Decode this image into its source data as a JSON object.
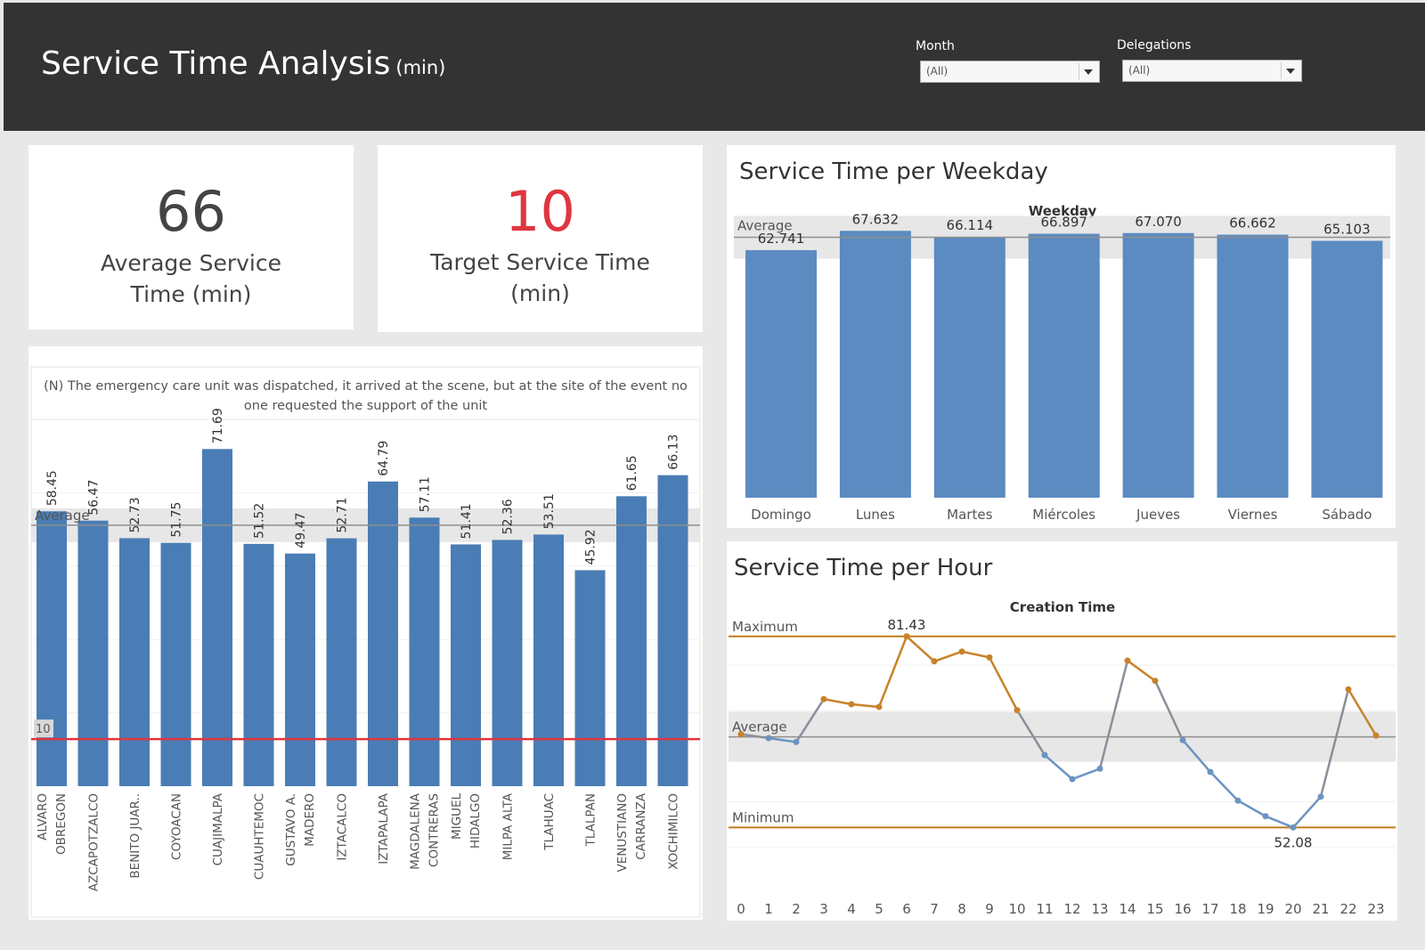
{
  "header": {
    "title": "Service Time Analysis",
    "title_unit": "(min)",
    "filters": [
      {
        "label": "Month",
        "value": "(All)"
      },
      {
        "label": "Delegations",
        "value": "(All)"
      }
    ]
  },
  "kpis": [
    {
      "value": "66",
      "label_line1": "Average Service",
      "label_line2": "Time (min)",
      "color": "#444444"
    },
    {
      "value": "10",
      "label_line1": "Target Service Time",
      "label_line2": "(min)",
      "color": "#e0353f"
    }
  ],
  "colors": {
    "bar": "#4a7db5",
    "bar_weekday": "#5b8bc0",
    "target_line": "#e0353f",
    "hour_line_high": "#c8822a",
    "hour_line_low": "#6a94c2",
    "ref_line": "#c07c1c"
  },
  "chart_data": [
    {
      "type": "bar",
      "note_line1": "(N) The emergency care unit was dispatched, it arrived at the scene, but at the site of the event no",
      "note_line2": "one requested the support of the unit",
      "categories": [
        "ALVARO|OBREGON",
        "AZCAPOTZALCO",
        "BENITO JUAR..",
        "COYOACAN",
        "CUAJIMALPA",
        "CUAUHTEMOC",
        "GUSTAVO A.|MADERO",
        "IZTACALCO",
        "IZTAPALAPA",
        "MAGDALENA|CONTRERAS",
        "MIGUEL|HIDALGO",
        "MILPA ALTA",
        "TLAHUAC",
        "TLALPAN",
        "VENUSTIANO|CARRANZA",
        "XOCHIMILCO"
      ],
      "values": [
        58.45,
        56.47,
        52.73,
        51.75,
        71.69,
        51.52,
        49.47,
        52.71,
        64.79,
        57.11,
        51.41,
        52.36,
        53.51,
        45.92,
        61.65,
        66.13
      ],
      "value_labels": [
        "58.45",
        "56.47",
        "52.73",
        "51.75",
        "71.69",
        "51.52",
        "49.47",
        "52.71",
        "64.79",
        "57.11",
        "51.41",
        "52.36",
        "53.51",
        "45.92",
        "61.65",
        "66.13"
      ],
      "ylim": [
        0,
        78
      ],
      "reference_lines": [
        {
          "label": "Average",
          "value": 55.5
        },
        {
          "label": "10",
          "value": 10
        }
      ]
    },
    {
      "type": "bar",
      "title": "Service Time per Weekday",
      "xlabel": "Weekday",
      "categories": [
        "Domingo",
        "Lunes",
        "Martes",
        "Miércoles",
        "Jueves",
        "Viernes",
        "Sábado"
      ],
      "values": [
        62.741,
        67.632,
        66.114,
        66.897,
        67.07,
        66.662,
        65.103
      ],
      "value_labels": [
        "62.741",
        "67.632",
        "66.114",
        "66.897",
        "67.070",
        "66.662",
        "65.103"
      ],
      "ylim": [
        0,
        69.5
      ],
      "reference_lines": [
        {
          "label": "Average",
          "value": 66.0
        }
      ]
    },
    {
      "type": "line",
      "title": "Service Time per Hour",
      "xlabel": "Creation Time",
      "x": [
        0,
        1,
        2,
        3,
        4,
        5,
        6,
        7,
        8,
        9,
        10,
        11,
        12,
        13,
        14,
        15,
        16,
        17,
        18,
        19,
        20,
        21,
        22,
        23
      ],
      "x_labels": [
        "0",
        "1",
        "2",
        "3",
        "4",
        "5",
        "6",
        "7",
        "8",
        "9",
        "10",
        "11",
        "12",
        "13",
        "14",
        "15",
        "16",
        "17",
        "18",
        "19",
        "20",
        "21",
        "22",
        "23"
      ],
      "values": [
        66.4,
        65.8,
        65.2,
        71.8,
        71.0,
        70.6,
        81.43,
        77.6,
        79.1,
        78.2,
        70.1,
        63.2,
        59.5,
        61.1,
        77.7,
        74.6,
        65.5,
        60.6,
        56.2,
        53.8,
        52.08,
        56.8,
        73.3,
        66.2
      ],
      "ylim": [
        42.0,
        84.0
      ],
      "reference_lines": [
        {
          "label": "Maximum",
          "value": 81.43
        },
        {
          "label": "Average",
          "value": 66.0
        },
        {
          "label": "Minimum",
          "value": 52.08
        }
      ],
      "point_labels": [
        {
          "index": 6,
          "text": "81.43"
        },
        {
          "index": 20,
          "text": "52.08"
        }
      ]
    }
  ]
}
